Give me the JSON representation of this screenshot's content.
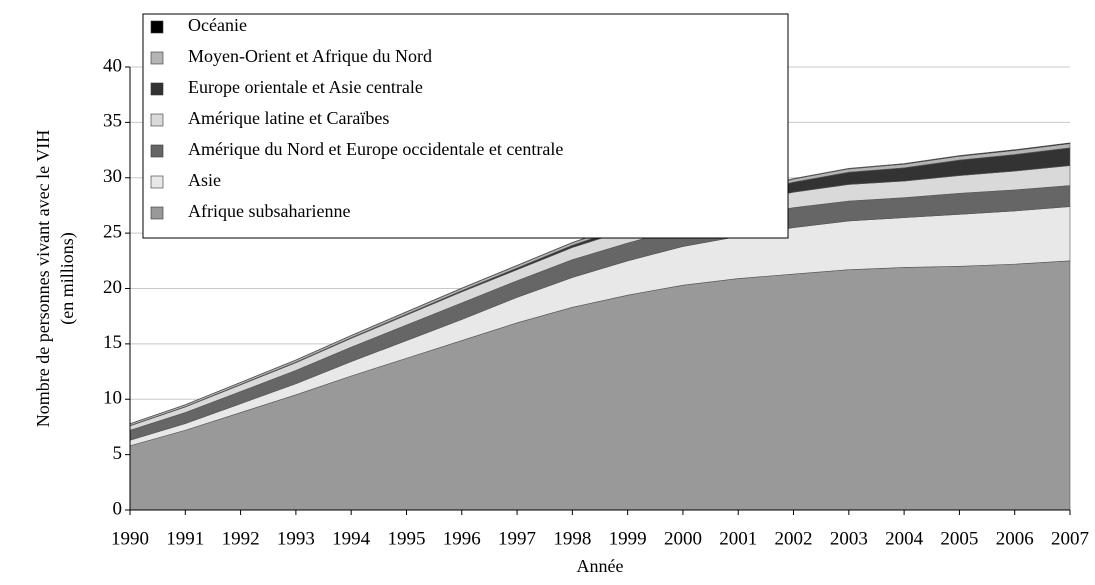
{
  "chart_data": {
    "type": "stacked_area",
    "x_label": "Année",
    "y_label": [
      "Nombre de personnes vivant avec le VIH",
      "(en millions)"
    ],
    "categories": [
      "1990",
      "1991",
      "1992",
      "1993",
      "1994",
      "1995",
      "1996",
      "1997",
      "1998",
      "1999",
      "2000",
      "2001",
      "2002",
      "2003",
      "2004",
      "2005",
      "2006",
      "2007"
    ],
    "series": [
      {
        "name": "Afrique subsaharienne",
        "color": "#999999",
        "values": [
          5.8,
          7.2,
          8.8,
          10.4,
          12.1,
          13.7,
          15.3,
          16.9,
          18.3,
          19.4,
          20.3,
          20.9,
          21.3,
          21.7,
          21.9,
          22.0,
          22.2,
          22.5
        ]
      },
      {
        "name": "Asie",
        "color": "#e8e8e8",
        "values": [
          0.5,
          0.6,
          0.8,
          1.0,
          1.3,
          1.6,
          1.9,
          2.3,
          2.7,
          3.1,
          3.5,
          3.8,
          4.2,
          4.4,
          4.5,
          4.7,
          4.8,
          4.9
        ]
      },
      {
        "name": "Amérique du Nord et Europe occidentale et centrale",
        "color": "#666666",
        "values": [
          0.9,
          1.0,
          1.1,
          1.2,
          1.3,
          1.4,
          1.5,
          1.5,
          1.6,
          1.6,
          1.7,
          1.7,
          1.8,
          1.8,
          1.8,
          1.9,
          1.9,
          1.9
        ]
      },
      {
        "name": "Amérique latine et Caraïbes",
        "color": "#d9d9d9",
        "values": [
          0.4,
          0.5,
          0.6,
          0.7,
          0.8,
          0.9,
          1.0,
          1.0,
          1.1,
          1.2,
          1.3,
          1.3,
          1.4,
          1.5,
          1.5,
          1.6,
          1.7,
          1.8
        ]
      },
      {
        "name": "Europe orientale et Asie centrale",
        "color": "#333333",
        "values": [
          0.03,
          0.03,
          0.04,
          0.05,
          0.06,
          0.08,
          0.1,
          0.15,
          0.2,
          0.3,
          0.5,
          0.7,
          0.9,
          1.1,
          1.2,
          1.4,
          1.5,
          1.6
        ]
      },
      {
        "name": "Moyen-Orient et Afrique du Nord",
        "color": "#b4b4b4",
        "values": [
          0.15,
          0.16,
          0.17,
          0.18,
          0.19,
          0.2,
          0.21,
          0.22,
          0.23,
          0.24,
          0.25,
          0.26,
          0.28,
          0.3,
          0.32,
          0.34,
          0.36,
          0.38
        ]
      },
      {
        "name": "Océanie",
        "color": "#000000",
        "values": [
          0.02,
          0.02,
          0.02,
          0.02,
          0.02,
          0.03,
          0.03,
          0.03,
          0.03,
          0.04,
          0.04,
          0.04,
          0.05,
          0.05,
          0.06,
          0.06,
          0.07,
          0.07
        ]
      }
    ],
    "ylim": [
      0,
      40
    ],
    "yticks": [
      0,
      5,
      10,
      15,
      20,
      25,
      30,
      35,
      40
    ],
    "grid": true
  }
}
